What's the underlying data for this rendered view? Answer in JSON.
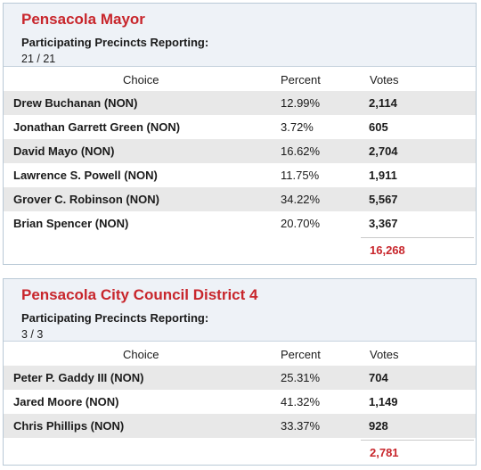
{
  "races": [
    {
      "title": "Pensacola Mayor",
      "precincts_label": "Participating Precincts Reporting:",
      "precincts_value": "21 / 21",
      "columns": {
        "choice": "Choice",
        "percent": "Percent",
        "votes": "Votes"
      },
      "candidates": [
        {
          "name": "Drew Buchanan (NON)",
          "percent": "12.99%",
          "votes": "2,114"
        },
        {
          "name": "Jonathan Garrett Green (NON)",
          "percent": "3.72%",
          "votes": "605"
        },
        {
          "name": "David Mayo (NON)",
          "percent": "16.62%",
          "votes": "2,704"
        },
        {
          "name": "Lawrence S. Powell (NON)",
          "percent": "11.75%",
          "votes": "1,911"
        },
        {
          "name": "Grover C. Robinson (NON)",
          "percent": "34.22%",
          "votes": "5,567"
        },
        {
          "name": "Brian Spencer (NON)",
          "percent": "20.70%",
          "votes": "3,367"
        }
      ],
      "total_votes": "16,268"
    },
    {
      "title": "Pensacola City Council District 4",
      "precincts_label": "Participating Precincts Reporting:",
      "precincts_value": "3 / 3",
      "columns": {
        "choice": "Choice",
        "percent": "Percent",
        "votes": "Votes"
      },
      "candidates": [
        {
          "name": "Peter P. Gaddy III (NON)",
          "percent": "25.31%",
          "votes": "704"
        },
        {
          "name": "Jared Moore (NON)",
          "percent": "41.32%",
          "votes": "1,149"
        },
        {
          "name": "Chris Phillips (NON)",
          "percent": "33.37%",
          "votes": "928"
        }
      ],
      "total_votes": "2,781"
    }
  ],
  "colors": {
    "title": "#c8262c",
    "header_bg": "#eef2f7",
    "row_shade": "#e8e8e8",
    "border": "#b9c9d6"
  }
}
